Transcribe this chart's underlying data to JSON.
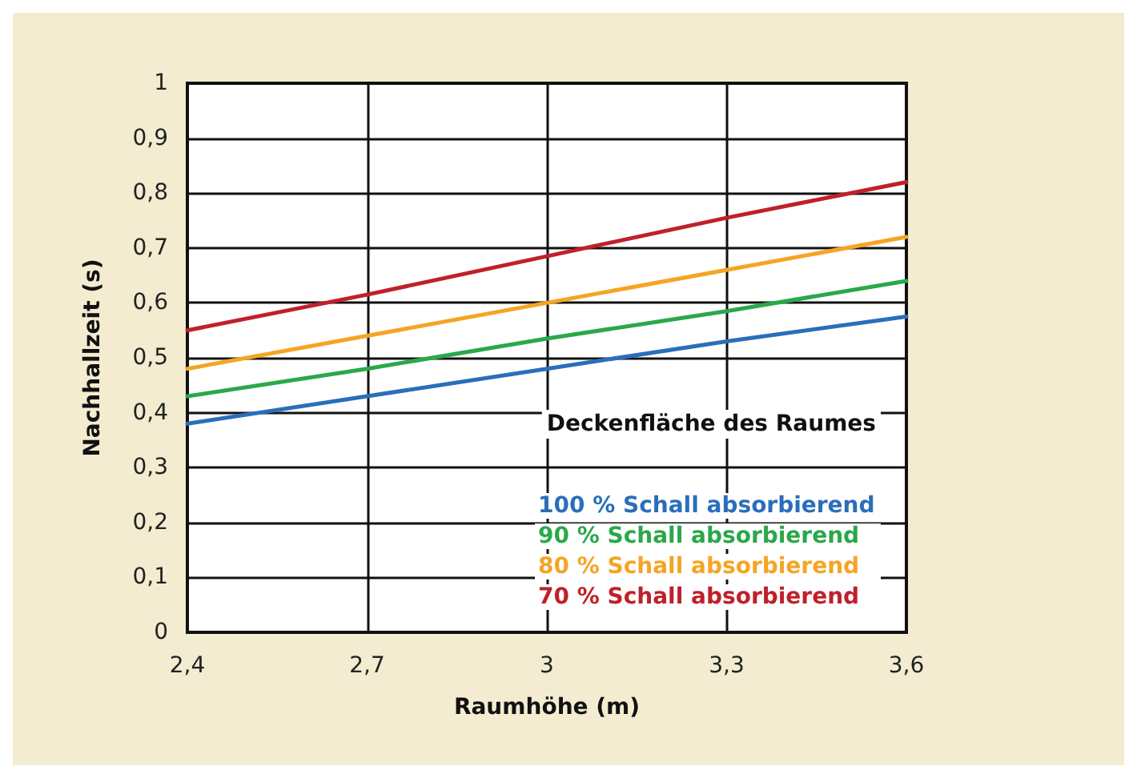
{
  "chart_data": {
    "type": "line",
    "xlabel": "Raumhöhe (m)",
    "ylabel": "Nachhallzeit (s)",
    "legend_title": "Deckenfläche des Raumes",
    "x": [
      2.4,
      2.7,
      3,
      3.3,
      3.6
    ],
    "series": [
      {
        "name": "100 % Schall absorbierend",
        "color": "#2a6ebb",
        "values": [
          0.38,
          0.43,
          0.48,
          0.53,
          0.575
        ]
      },
      {
        "name": "90 % Schall absorbierend",
        "color": "#2aa84a",
        "values": [
          0.43,
          0.48,
          0.535,
          0.585,
          0.64
        ]
      },
      {
        "name": "80 % Schall absorbierend",
        "color": "#f5a524",
        "values": [
          0.48,
          0.54,
          0.6,
          0.66,
          0.72
        ]
      },
      {
        "name": "70 % Schall absorbierend",
        "color": "#c0202a",
        "values": [
          0.55,
          0.615,
          0.685,
          0.755,
          0.82
        ]
      }
    ],
    "xlim": [
      2.4,
      3.6
    ],
    "xticks": [
      {
        "value": 2.4,
        "label": "2,4"
      },
      {
        "value": 2.7,
        "label": "2,7"
      },
      3,
      {
        "value": 3.3,
        "label": "3,3"
      },
      {
        "value": 3.6,
        "label": "3,6"
      }
    ],
    "ylim": [
      0,
      1
    ],
    "yticks": [
      0,
      {
        "value": 0.1,
        "label": "0,1"
      },
      {
        "value": 0.2,
        "label": "0,2"
      },
      {
        "value": 0.3,
        "label": "0,3"
      },
      {
        "value": 0.4,
        "label": "0,4"
      },
      {
        "value": 0.5,
        "label": "0,5"
      },
      {
        "value": 0.6,
        "label": "0,6"
      },
      {
        "value": 0.7,
        "label": "0,7"
      },
      {
        "value": 0.8,
        "label": "0,8"
      },
      {
        "value": 0.9,
        "label": "0,9"
      },
      1
    ],
    "grid": true,
    "legend": "bottom right",
    "marker": "none",
    "line_style": "solid"
  }
}
